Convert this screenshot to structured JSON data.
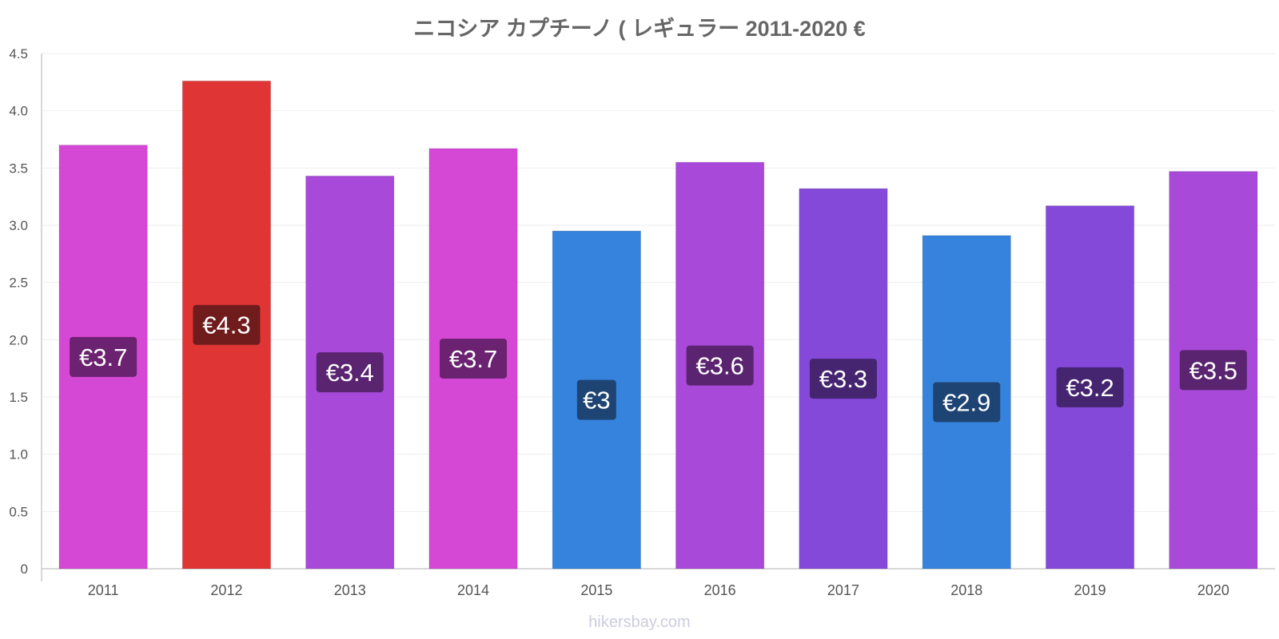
{
  "chart_data": {
    "type": "bar",
    "title": "ニコシア カプチーノ ( レギュラー 2011-2020 €",
    "xlabel": "",
    "ylabel": "",
    "ylim": [
      0,
      4.5
    ],
    "yticks": [
      "0",
      "0.5",
      "1.0",
      "1.5",
      "2.0",
      "2.5",
      "3.0",
      "3.5",
      "4.0",
      "4.5"
    ],
    "grid": true,
    "categories": [
      "2011",
      "2012",
      "2013",
      "2014",
      "2015",
      "2016",
      "2017",
      "2018",
      "2019",
      "2020"
    ],
    "values": [
      3.7,
      4.26,
      3.43,
      3.67,
      2.95,
      3.55,
      3.32,
      2.91,
      3.17,
      3.47
    ],
    "labels": [
      "€3.7",
      "€4.3",
      "€3.4",
      "€3.7",
      "€3",
      "€3.6",
      "€3.3",
      "€2.9",
      "€3.2",
      "€3.5"
    ],
    "bar_colors": [
      "#d548d5",
      "#e03535",
      "#a849d9",
      "#d548d5",
      "#3683de",
      "#a849d9",
      "#8549d9",
      "#3683de",
      "#8549d9",
      "#a849d9"
    ],
    "label_bg_colors": [
      "#6b2270",
      "#701c1c",
      "#5a2470",
      "#6b2270",
      "#1e4474",
      "#5a2470",
      "#452470",
      "#1e4474",
      "#452470",
      "#5a2470"
    ]
  },
  "watermark": "hikersbay.com"
}
